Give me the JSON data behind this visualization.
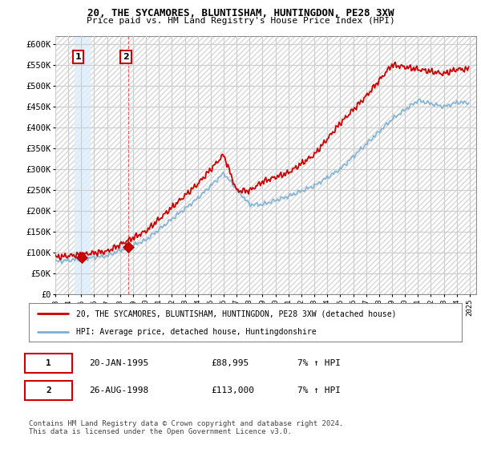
{
  "title": "20, THE SYCAMORES, BLUNTISHAM, HUNTINGDON, PE28 3XW",
  "subtitle": "Price paid vs. HM Land Registry's House Price Index (HPI)",
  "ylabel_ticks": [
    "£0",
    "£50K",
    "£100K",
    "£150K",
    "£200K",
    "£250K",
    "£300K",
    "£350K",
    "£400K",
    "£450K",
    "£500K",
    "£550K",
    "£600K"
  ],
  "ylim": [
    0,
    620000
  ],
  "ytick_values": [
    0,
    50000,
    100000,
    150000,
    200000,
    250000,
    300000,
    350000,
    400000,
    450000,
    500000,
    550000,
    600000
  ],
  "sale1_year": 1995.055,
  "sale1_price": 88995,
  "sale2_year": 1998.649,
  "sale2_price": 113000,
  "legend_red": "20, THE SYCAMORES, BLUNTISHAM, HUNTINGDON, PE28 3XW (detached house)",
  "legend_blue": "HPI: Average price, detached house, Huntingdonshire",
  "table_row1": [
    "1",
    "20-JAN-1995",
    "£88,995",
    "7% ↑ HPI"
  ],
  "table_row2": [
    "2",
    "26-AUG-1998",
    "£113,000",
    "7% ↑ HPI"
  ],
  "footer": "Contains HM Land Registry data © Crown copyright and database right 2024.\nThis data is licensed under the Open Government Licence v3.0.",
  "red_color": "#cc0000",
  "blue_color": "#7bafd4",
  "grid_color": "#cccccc",
  "plot_bg": "#ffffff",
  "hatch_color": "#d8d8d8",
  "highlight_color": "#ddeeff"
}
